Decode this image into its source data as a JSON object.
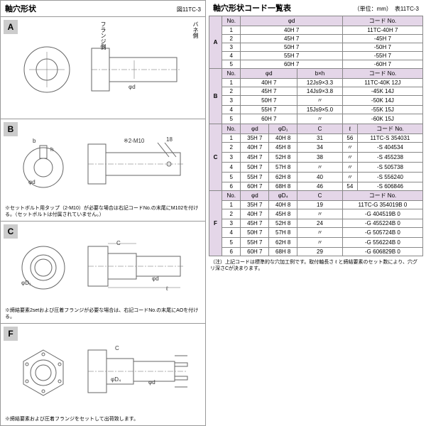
{
  "leftTitle": "軸穴形状",
  "leftSub": "図11TC-3",
  "rightTitle": "軸穴形状コード一覧表",
  "rightUnits": "（単位：mm）",
  "rightSub": "表11TC-3",
  "sections": {
    "A": {
      "label": "A",
      "labLeft": "フランジ側",
      "labRight": "バネ側",
      "dim": "φd"
    },
    "B": {
      "label": "B",
      "dimB": "b",
      "dimH": "h",
      "dimD": "φd",
      "annot": "※2-M10",
      "dim18": "18",
      "note": "※セットボルト用タップ（2-M10）が必要な場合は右記コードNo.の末尾にM102を付ける。（セットボルトは付属されていません。）"
    },
    "C": {
      "label": "C",
      "dimC": "C",
      "dimD1": "φD₁",
      "dimD": "φd",
      "dimL": "ℓ",
      "note": "※締結要素2setおよび圧着フランジが必要な場合は、右記コードNo.の末尾にAOを付ける。"
    },
    "F": {
      "label": "F",
      "dimC": "C",
      "dimD4": "φD₄",
      "dimD": "φd",
      "note": "※締結要素および圧着フランジをセットして出荷致します。"
    }
  },
  "tableA": {
    "headers": [
      "No.",
      "φd",
      "コード No."
    ],
    "rows": [
      [
        "1",
        "40H 7",
        "11TC-40H 7"
      ],
      [
        "2",
        "45H 7",
        "-45H 7"
      ],
      [
        "3",
        "50H 7",
        "-50H 7"
      ],
      [
        "4",
        "55H 7",
        "-55H 7"
      ],
      [
        "5",
        "60H 7",
        "-60H 7"
      ]
    ]
  },
  "tableB": {
    "headers": [
      "No.",
      "φd",
      "b×h",
      "コード No."
    ],
    "rows": [
      [
        "1",
        "40H 7",
        "12Js9×3.3",
        "11TC-40K 12J"
      ],
      [
        "2",
        "45H 7",
        "14Js9×3.8",
        "-45K 14J"
      ],
      [
        "3",
        "50H 7",
        "〃",
        "-50K 14J"
      ],
      [
        "4",
        "55H 7",
        "15Js9×5.0",
        "-55K 15J"
      ],
      [
        "5",
        "60H 7",
        "〃",
        "-60K 15J"
      ]
    ]
  },
  "tableC": {
    "headers": [
      "No.",
      "φd",
      "φD₁",
      "C",
      "ℓ",
      "コード No."
    ],
    "rows": [
      [
        "1",
        "35H 7",
        "40H 8",
        "31",
        "56",
        "11TC-S 354031"
      ],
      [
        "2",
        "40H 7",
        "45H 8",
        "34",
        "〃",
        "-S 404534"
      ],
      [
        "3",
        "45H 7",
        "52H 8",
        "38",
        "〃",
        "-S 455238"
      ],
      [
        "4",
        "50H 7",
        "57H 8",
        "〃",
        "〃",
        "-S 505738"
      ],
      [
        "5",
        "55H 7",
        "62H 8",
        "40",
        "〃",
        "-S 556240"
      ],
      [
        "6",
        "60H 7",
        "68H 8",
        "46",
        "54",
        "-S 606846"
      ]
    ]
  },
  "tableF": {
    "headers": [
      "No.",
      "φd",
      "φD₄",
      "C",
      "コード No."
    ],
    "rows": [
      [
        "1",
        "35H 7",
        "40H 8",
        "19",
        "11TC-G 354019B 0"
      ],
      [
        "2",
        "40H 7",
        "45H 8",
        "〃",
        "-G 404519B 0"
      ],
      [
        "3",
        "45H 7",
        "52H 8",
        "24",
        "-G 455224B 0"
      ],
      [
        "4",
        "50H 7",
        "57H 8",
        "〃",
        "-G 505724B 0"
      ],
      [
        "5",
        "55H 7",
        "62H 8",
        "〃",
        "-G 556224B 0"
      ],
      [
        "6",
        "60H 7",
        "68H 8",
        "29",
        "-G 606829B 0"
      ]
    ]
  },
  "rightNote": "（注）上記コードは標準的な穴加工例です。取付軸長さ ℓ と締結要素のセット数により、穴グリ深さCが決まります。"
}
